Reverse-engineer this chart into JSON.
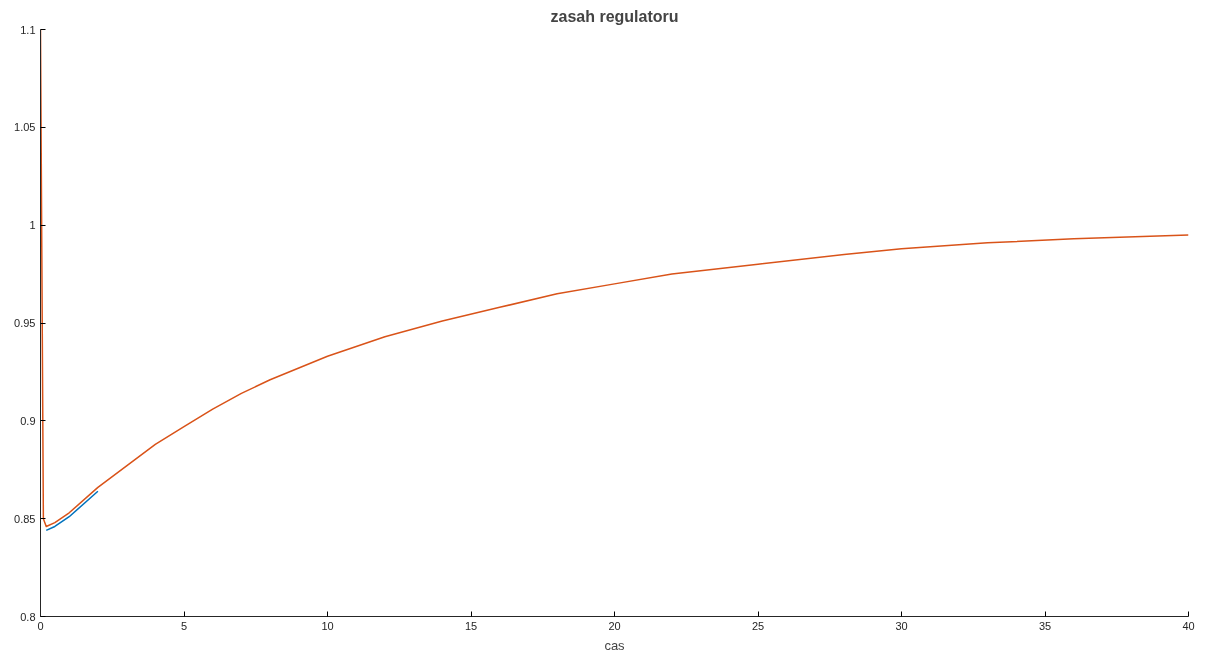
{
  "chart_data": {
    "type": "line",
    "title": "zasah regulatoru",
    "xlabel": "cas",
    "xlim": [
      0,
      40
    ],
    "ylim": [
      0.8,
      1.1
    ],
    "xticks": [
      0,
      5,
      10,
      15,
      20,
      25,
      30,
      35,
      40
    ],
    "yticks": [
      0.8,
      0.85,
      0.9,
      0.95,
      1,
      1.05,
      1.1
    ],
    "grid": false,
    "line_style": "solid",
    "x": [
      0,
      0.1,
      0.2,
      0.5,
      1,
      2,
      3,
      4,
      5,
      6,
      7,
      8,
      9,
      10,
      12,
      14,
      16,
      18,
      20,
      22,
      25,
      28,
      30,
      33,
      36,
      40
    ],
    "series": [
      {
        "color": "#0072bd",
        "values": [
          null,
          null,
          0.844,
          0.846,
          0.851,
          0.864,
          null,
          null,
          null,
          null,
          null,
          null,
          null,
          null,
          null,
          null,
          null,
          null,
          null,
          null,
          null,
          null,
          null,
          null,
          null,
          null
        ]
      },
      {
        "color": "#d95319",
        "values": [
          1.1,
          0.85,
          0.846,
          0.848,
          0.853,
          0.866,
          0.877,
          0.888,
          0.897,
          0.906,
          0.914,
          0.921,
          0.927,
          0.933,
          0.943,
          0.951,
          0.958,
          0.965,
          0.97,
          0.975,
          0.98,
          0.985,
          0.988,
          0.991,
          0.993,
          0.995
        ]
      }
    ]
  }
}
